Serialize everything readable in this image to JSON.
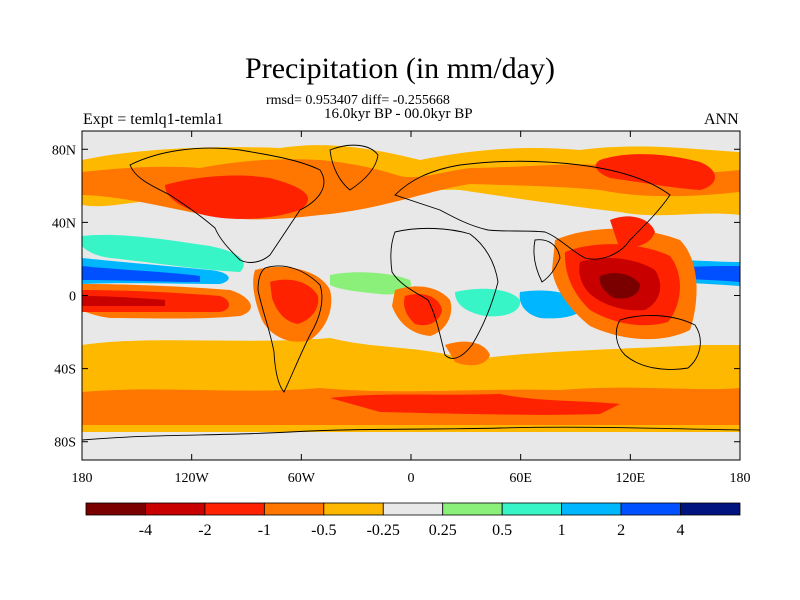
{
  "title": "Precipitation (in mm/day)",
  "stats_line": "rmsd= 0.953407 diff= -0.255668",
  "period_line": "16.0kyr BP - 00.0kyr BP",
  "experiment": "Expt = temlq1-temla1",
  "season": "ANN",
  "y_ticks": [
    {
      "label": "80N",
      "lat": 80
    },
    {
      "label": "40N",
      "lat": 40
    },
    {
      "label": "0",
      "lat": 0
    },
    {
      "label": "40S",
      "lat": -40
    },
    {
      "label": "80S",
      "lat": -80
    }
  ],
  "x_ticks": [
    {
      "label": "180",
      "lon": -180
    },
    {
      "label": "120W",
      "lon": -120
    },
    {
      "label": "60W",
      "lon": -60
    },
    {
      "label": "0",
      "lon": 0
    },
    {
      "label": "60E",
      "lon": 60
    },
    {
      "label": "120E",
      "lon": 120
    },
    {
      "label": "180",
      "lon": 180
    }
  ],
  "colorbar": {
    "colors": [
      "#7a0000",
      "#c80000",
      "#ff2200",
      "#ff7700",
      "#ffb800",
      "#e8e8e8",
      "#8af07a",
      "#38f5c8",
      "#00b7ff",
      "#0050ff",
      "#001480"
    ],
    "labels": [
      "-4",
      "-2",
      "-1",
      "-0.5",
      "-0.25",
      "0.25",
      "0.5",
      "1",
      "2",
      "4"
    ]
  },
  "palette": {
    "background_field": "#e8e8e8",
    "coast": "#000000"
  }
}
